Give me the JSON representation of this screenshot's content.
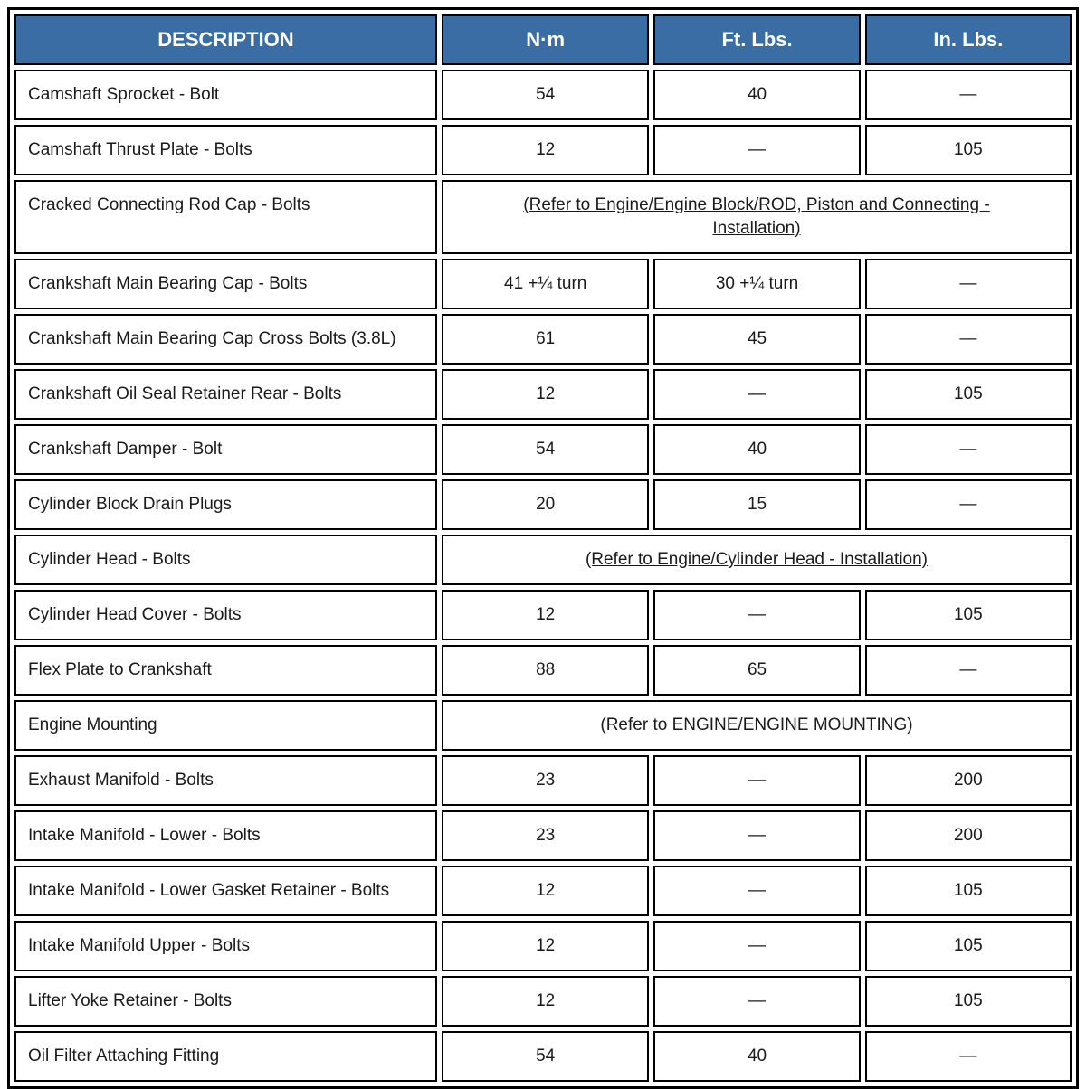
{
  "colors": {
    "header_bg": "#3A6DA4",
    "header_text": "#FFFFFF",
    "border": "#000000",
    "body_text": "#1A1A1A"
  },
  "table": {
    "headers": [
      "DESCRIPTION",
      "N·m",
      "Ft. Lbs.",
      "In. Lbs."
    ],
    "rows": [
      {
        "type": "values",
        "description": "Camshaft Sprocket - Bolt",
        "nm": "54",
        "ftlbs": "40",
        "inlbs": "—"
      },
      {
        "type": "values",
        "description": "Camshaft Thrust Plate - Bolts",
        "nm": "12",
        "ftlbs": "—",
        "inlbs": "105"
      },
      {
        "type": "refer",
        "description": "Cracked Connecting Rod Cap - Bolts",
        "refer": "(Refer to Engine/Engine Block/ROD, Piston and Connecting - Installation)",
        "underline": true
      },
      {
        "type": "values",
        "description": "Crankshaft Main Bearing Cap - Bolts",
        "nm": "41 +¼ turn",
        "ftlbs": "30 +¼ turn",
        "inlbs": "—"
      },
      {
        "type": "values",
        "description": "Crankshaft Main Bearing Cap Cross Bolts (3.8L)",
        "nm": "61",
        "ftlbs": "45",
        "inlbs": "—"
      },
      {
        "type": "values",
        "description": "Crankshaft Oil Seal Retainer Rear - Bolts",
        "nm": "12",
        "ftlbs": "—",
        "inlbs": "105"
      },
      {
        "type": "values",
        "description": "Crankshaft Damper - Bolt",
        "nm": "54",
        "ftlbs": "40",
        "inlbs": "—"
      },
      {
        "type": "values",
        "description": "Cylinder Block Drain Plugs",
        "nm": "20",
        "ftlbs": "15",
        "inlbs": "—"
      },
      {
        "type": "refer",
        "description": "Cylinder Head - Bolts",
        "refer": "(Refer to Engine/Cylinder Head - Installation)",
        "underline": true
      },
      {
        "type": "values",
        "description": "Cylinder Head Cover - Bolts",
        "nm": "12",
        "ftlbs": "—",
        "inlbs": "105"
      },
      {
        "type": "values",
        "description": "Flex Plate to Crankshaft",
        "nm": "88",
        "ftlbs": "65",
        "inlbs": "—"
      },
      {
        "type": "refer",
        "description": "Engine Mounting",
        "refer": "(Refer to ENGINE/ENGINE MOUNTING)",
        "underline": false
      },
      {
        "type": "values",
        "description": "Exhaust Manifold - Bolts",
        "nm": "23",
        "ftlbs": "—",
        "inlbs": "200"
      },
      {
        "type": "values",
        "description": "Intake Manifold - Lower - Bolts",
        "nm": "23",
        "ftlbs": "—",
        "inlbs": "200"
      },
      {
        "type": "values",
        "description": "Intake Manifold - Lower Gasket Retainer - Bolts",
        "nm": "12",
        "ftlbs": "—",
        "inlbs": "105"
      },
      {
        "type": "values",
        "description": "Intake Manifold Upper - Bolts",
        "nm": "12",
        "ftlbs": "—",
        "inlbs": "105"
      },
      {
        "type": "values",
        "description": "Lifter Yoke Retainer - Bolts",
        "nm": "12",
        "ftlbs": "—",
        "inlbs": "105"
      },
      {
        "type": "values",
        "description": "Oil Filter Attaching Fitting",
        "nm": "54",
        "ftlbs": "40",
        "inlbs": "—"
      }
    ]
  }
}
